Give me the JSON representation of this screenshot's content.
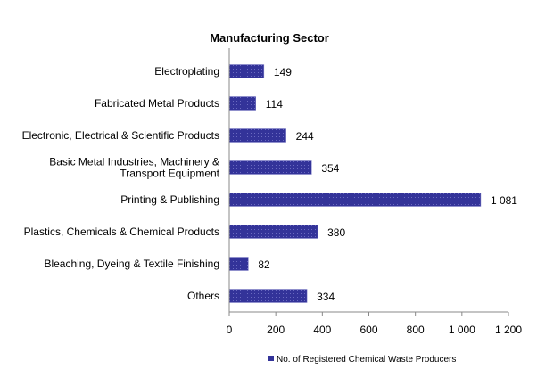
{
  "chart_data": {
    "type": "bar",
    "orientation": "horizontal",
    "title": "Manufacturing Sector",
    "xlabel": "",
    "ylabel": "",
    "categories": [
      [
        "Electroplating"
      ],
      [
        "Fabricated Metal Products"
      ],
      [
        "Electronic, Electrical & Scientific Products"
      ],
      [
        "Basic Metal Industries, Machinery &",
        "Transport Equipment"
      ],
      [
        "Printing & Publishing"
      ],
      [
        "Plastics, Chemicals & Chemical Products"
      ],
      [
        "Bleaching, Dyeing & Textile Finishing"
      ],
      [
        "Others"
      ]
    ],
    "series": [
      {
        "name": "No. of Registered Chemical Waste Producers",
        "values": [
          149,
          114,
          244,
          354,
          1081,
          380,
          82,
          334
        ],
        "data_labels": [
          "149",
          "114",
          "244",
          "354",
          "1 081",
          "380",
          "82",
          "334"
        ],
        "color": "#333399"
      }
    ],
    "xlim": [
      0,
      1200
    ],
    "x_ticks": [
      0,
      200,
      400,
      600,
      800,
      1000,
      1200
    ],
    "x_tick_labels": [
      "0",
      "200",
      "400",
      "600",
      "800",
      "1 000",
      "1 200"
    ],
    "grid": false,
    "legend_position": "bottom"
  }
}
